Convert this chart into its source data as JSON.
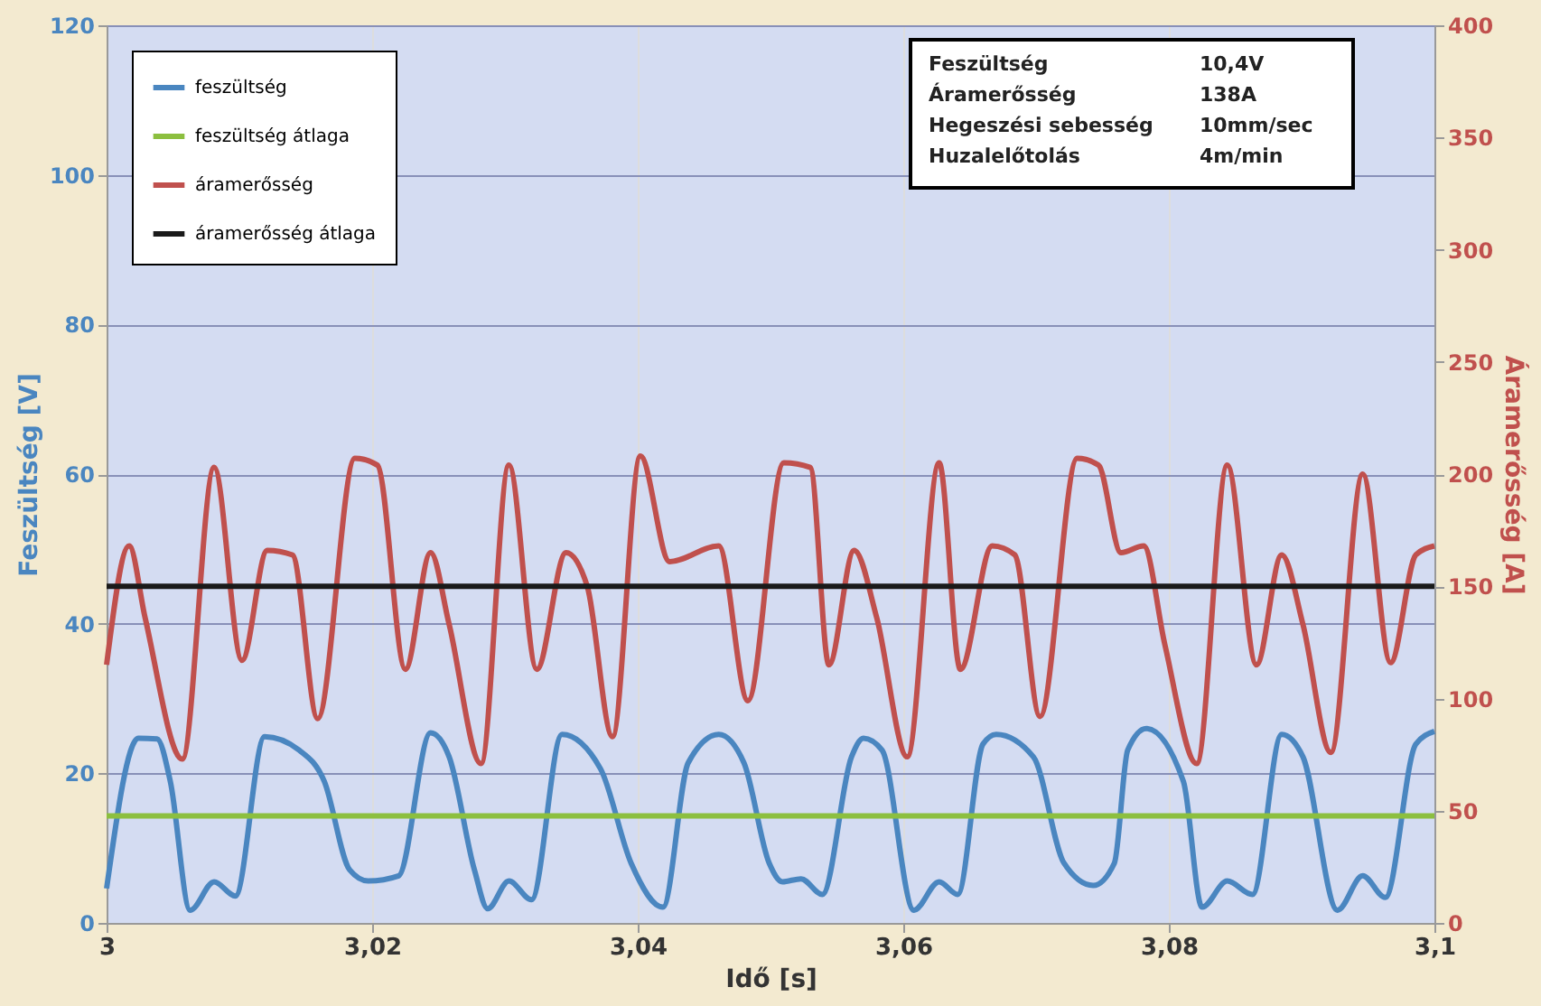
{
  "chart_data": {
    "type": "line",
    "xlabel": "Idő [s]",
    "ylabel": "Feszültség [V]",
    "y2label": "Áramerősség [A]",
    "xlim": [
      3,
      3.1
    ],
    "xticks": [
      3,
      {
        "value": 3.02,
        "label": "3,02"
      },
      {
        "value": 3.04,
        "label": "3,04"
      },
      {
        "value": 3.06,
        "label": "3,06"
      },
      {
        "value": 3.08,
        "label": "3,08"
      },
      {
        "value": 3.1,
        "label": "3,1"
      }
    ],
    "ylim": [
      0,
      120
    ],
    "yticks": [
      0,
      20,
      40,
      60,
      80,
      100,
      120
    ],
    "y2lim": [
      0,
      400
    ],
    "y2ticks": [
      0,
      50,
      100,
      150,
      200,
      250,
      300,
      350,
      400
    ],
    "grid": true,
    "legend": "top left",
    "annotations": [
      "Feszültség",
      "10,4V",
      "Áramerősség",
      "138A",
      "Hegeszési sebesség",
      "10mm/sec",
      "Huzalelőtolás",
      "4m/min"
    ],
    "series": [
      {
        "name": "feszültség",
        "color": "#4a86c0",
        "x": [
          3.0,
          3.0024,
          3.0038,
          3.0048,
          3.0063,
          3.0081,
          3.0097,
          3.0119,
          3.0145,
          3.0164,
          3.0183,
          3.0197,
          3.022,
          3.0244,
          3.0258,
          3.0277,
          3.0287,
          3.0303,
          3.032,
          3.0343,
          3.0372,
          3.0395,
          3.0419,
          3.0438,
          3.0461,
          3.048,
          3.0499,
          3.0509,
          3.0523,
          3.0539,
          3.0561,
          3.057,
          3.0584,
          3.0608,
          3.0627,
          3.0641,
          3.066,
          3.067,
          3.0698,
          3.0721,
          3.0743,
          3.0759,
          3.0769,
          3.0783,
          3.0811,
          3.0825,
          3.0844,
          3.0863,
          3.0885,
          3.0901,
          3.0927,
          3.0946,
          3.0963,
          3.0986,
          3.1
        ],
        "values": [
          4.6,
          24.7,
          24.6,
          18.9,
          1.7,
          5.5,
          3.6,
          24.9,
          23.1,
          18.9,
          7.1,
          5.6,
          6.3,
          25.4,
          22.2,
          7.1,
          1.9,
          5.6,
          3.1,
          25.2,
          20.6,
          8.0,
          2.1,
          21.4,
          25.2,
          21.4,
          8.0,
          5.5,
          5.9,
          3.8,
          22.2,
          24.7,
          23.1,
          1.7,
          5.5,
          3.8,
          23.9,
          25.2,
          22.2,
          8.0,
          5.0,
          8.0,
          23.1,
          26.0,
          18.9,
          2.1,
          5.6,
          3.8,
          25.2,
          22.2,
          1.7,
          6.3,
          3.4,
          23.9,
          25.6
        ]
      },
      {
        "name": "feszültség átlaga",
        "color": "#8cbf3f",
        "x": [
          3.0,
          3.1
        ],
        "values": [
          14.3,
          14.3
        ]
      },
      {
        "name": "áramerősség",
        "color": "#c0504d",
        "axis": "y2",
        "x": [
          3.0,
          3.0017,
          3.0029,
          3.0057,
          3.0081,
          3.0102,
          3.0121,
          3.014,
          3.0159,
          3.0187,
          3.0204,
          3.0225,
          3.0244,
          3.0258,
          3.0282,
          3.0303,
          3.0324,
          3.0346,
          3.0362,
          3.0381,
          3.0402,
          3.0424,
          3.0461,
          3.0483,
          3.051,
          3.053,
          3.0544,
          3.0563,
          3.058,
          3.0603,
          3.0627,
          3.0643,
          3.0667,
          3.0684,
          3.0703,
          3.0731,
          3.0747,
          3.0764,
          3.0781,
          3.0797,
          3.0821,
          3.0844,
          3.0866,
          3.0885,
          3.0901,
          3.0922,
          3.0946,
          3.0967,
          3.0986,
          3.1
        ],
        "values": [
          115,
          168,
          136,
          73,
          203,
          117,
          166,
          164,
          91,
          207,
          204,
          113,
          165,
          133,
          71,
          204,
          113,
          165,
          150,
          83,
          208,
          161,
          168,
          99,
          205,
          203,
          115,
          166,
          136,
          74,
          205,
          113,
          168,
          164,
          92,
          207,
          204,
          165,
          168,
          124,
          71,
          204,
          115,
          164,
          133,
          76,
          200,
          116,
          164,
          168
        ]
      },
      {
        "name": "áramerősség átlaga",
        "color": "#1a1a1a",
        "axis": "y2",
        "x": [
          3.0,
          3.1
        ],
        "values": [
          150,
          150
        ]
      }
    ]
  }
}
